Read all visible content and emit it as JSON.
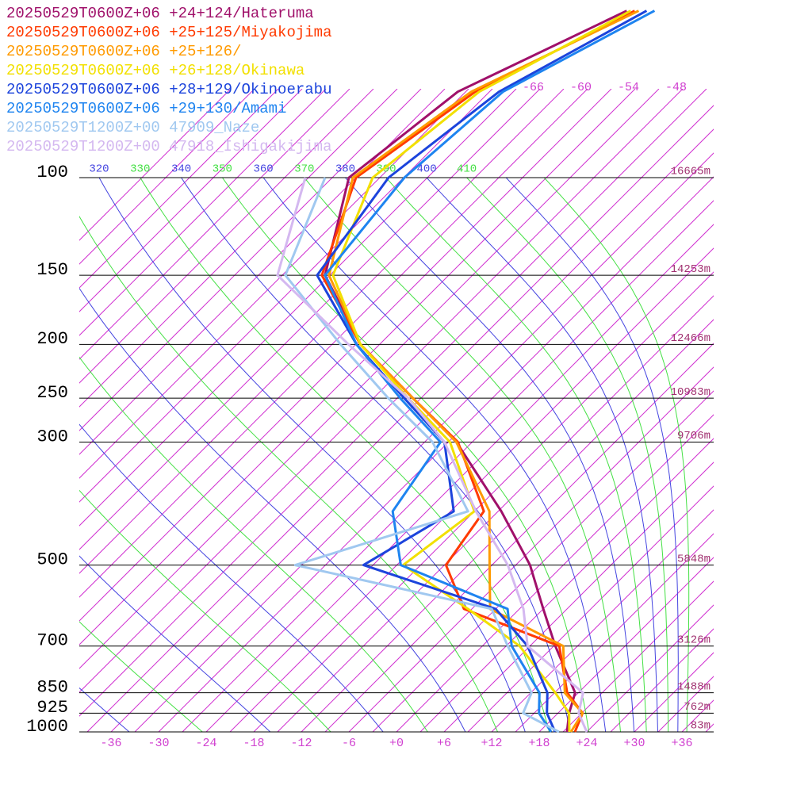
{
  "chart_data": {
    "type": "skewt",
    "pressure": [
      1000,
      925,
      850,
      700,
      600,
      500,
      400,
      300,
      250,
      200,
      150,
      100,
      70,
      50
    ],
    "series": [
      {
        "name": "20250529T0600Z+06 +24+124/Hateruma",
        "color": "#a0106a",
        "values": [
          21.5,
          19.4,
          17.6,
          9.2,
          3,
          -4.2,
          -14.6,
          -29,
          -40,
          -53.4,
          -66.6,
          -75.9,
          -73,
          -61.9
        ]
      },
      {
        "name": "20250529T0600Z+06 +25+125/Miyakojima",
        "color": "#ff3a00",
        "values": [
          22.5,
          21.1,
          16.6,
          9.7,
          -7,
          -14.8,
          -16.8,
          -28.8,
          -40,
          -53.4,
          -67,
          -75,
          -70.8,
          -60.9
        ]
      },
      {
        "name": "20250529T0600Z+06 +25+126/",
        "color": "#ff9a00",
        "values": [
          22,
          21.1,
          16.3,
          10.2,
          -3.7,
          -9.3,
          -16.1,
          -29,
          -40,
          -53.4,
          -66.1,
          -75.4,
          -71.3,
          -60.4
        ]
      },
      {
        "name": "20250529T0600Z+06 +26+128/Okinawa",
        "color": "#f2e000",
        "values": [
          21.8,
          19.4,
          15.1,
          4.7,
          -6.5,
          -20.2,
          -18,
          -29.8,
          -40.6,
          -53.4,
          -65.6,
          -72.9,
          -70.3,
          -61.4
        ]
      },
      {
        "name": "20250529T0600Z+06 +28+129/Okinoerabu",
        "color": "#1c44dc",
        "values": [
          20,
          16.6,
          14.1,
          5.7,
          -3,
          -25.2,
          -20.6,
          -30.5,
          -41.1,
          -53.9,
          -67.6,
          -70.9,
          -67.8,
          -59.4
        ]
      },
      {
        "name": "20250529T0600Z+06 +29+130/Amami",
        "color": "#1e84f0",
        "values": [
          19.5,
          15.6,
          13.1,
          3.7,
          -1.5,
          -20.5,
          -28.3,
          -31,
          -41.6,
          -53.9,
          -66.6,
          -68.9,
          -67.3,
          -58.4
        ]
      },
      {
        "name": "20250529T1200Z+00 47909_Naze",
        "color": "#a0c8f0",
        "values": [
          20.5,
          13.6,
          12.1,
          3.2,
          -3.5,
          -33.8,
          -18.8,
          -32,
          -43.1,
          -55.9,
          -71.6,
          -78.9,
          null,
          null
        ]
      },
      {
        "name": "20250529T1200Z+00 47918_Ishigakijima",
        "color": "#d4b8f0",
        "values": [
          24,
          20.6,
          18.6,
          5.7,
          0.5,
          -7,
          -17.8,
          -30.5,
          -40.6,
          -54.9,
          -72.6,
          -81.4,
          null,
          null
        ]
      }
    ],
    "ylim": [
      1000,
      100
    ],
    "yticks": [
      100,
      150,
      200,
      250,
      300,
      500,
      700,
      850,
      925,
      1000
    ],
    "heights": [
      "16665m",
      "14253m",
      "12466m",
      "10983m",
      "9706m",
      "5848m",
      "3126m",
      "1488m",
      "762m",
      "83m"
    ],
    "xlim": [
      -40,
      40
    ],
    "xticks": [
      -36,
      -30,
      -24,
      -18,
      -12,
      -6,
      {
        "value": 0,
        "label": "+0"
      },
      {
        "value": 6,
        "label": "+6"
      },
      {
        "value": 12,
        "label": "+12"
      },
      {
        "value": 18,
        "label": "+18"
      },
      {
        "value": 24,
        "label": "+24"
      },
      {
        "value": 30,
        "label": "+30"
      },
      {
        "value": 36,
        "label": "+36"
      }
    ],
    "isotherm_labels": [
      -66,
      -60,
      -54,
      -48
    ],
    "theta_ticks": [
      320,
      330,
      340,
      350,
      360,
      370,
      380,
      390,
      400,
      410
    ],
    "isotherm_color": "#d030d0",
    "theta_colors": [
      "#4444e0",
      "#44e044"
    ]
  }
}
